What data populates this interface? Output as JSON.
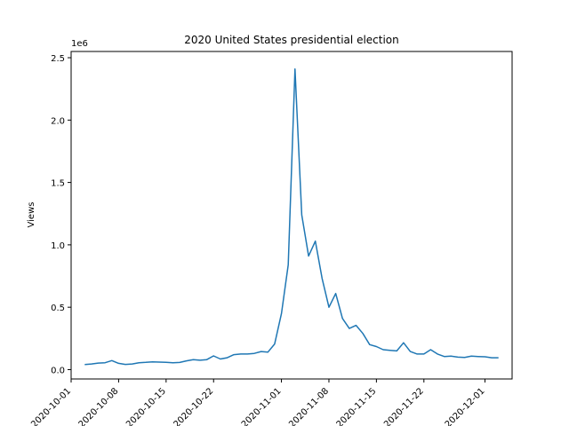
{
  "chart_data": {
    "type": "line",
    "title": "2020 United States presidential election",
    "xlabel": "",
    "ylabel": "Views",
    "offset_label": "1e6",
    "grid": false,
    "legend": "none",
    "line_color": "#1f77b4",
    "xlim": [
      "2020-10-01",
      "2020-12-05"
    ],
    "ylim": [
      -75000,
      2550000
    ],
    "y_ticks": [
      0,
      500000,
      1000000,
      1500000,
      2000000,
      2500000
    ],
    "y_tick_labels": [
      "0.0",
      "0.5",
      "1.0",
      "1.5",
      "2.0",
      "2.5"
    ],
    "x_ticks": [
      "2020-10-01",
      "2020-10-08",
      "2020-10-15",
      "2020-10-22",
      "2020-11-01",
      "2020-11-08",
      "2020-11-15",
      "2020-11-22",
      "2020-12-01"
    ],
    "x_tick_labels": [
      "2020-10-01",
      "2020-10-08",
      "2020-10-15",
      "2020-10-22",
      "2020-11-01",
      "2020-11-08",
      "2020-11-15",
      "2020-11-22",
      "2020-12-01"
    ],
    "series": [
      {
        "x": [
          "2020-10-03",
          "2020-10-04",
          "2020-10-05",
          "2020-10-06",
          "2020-10-07",
          "2020-10-08",
          "2020-10-09",
          "2020-10-10",
          "2020-10-11",
          "2020-10-12",
          "2020-10-13",
          "2020-10-14",
          "2020-10-15",
          "2020-10-16",
          "2020-10-17",
          "2020-10-18",
          "2020-10-19",
          "2020-10-20",
          "2020-10-21",
          "2020-10-22",
          "2020-10-23",
          "2020-10-24",
          "2020-10-25",
          "2020-10-26",
          "2020-10-27",
          "2020-10-28",
          "2020-10-29",
          "2020-10-30",
          "2020-10-31",
          "2020-11-01",
          "2020-11-02",
          "2020-11-03",
          "2020-11-04",
          "2020-11-05",
          "2020-11-06",
          "2020-11-07",
          "2020-11-08",
          "2020-11-09",
          "2020-11-10",
          "2020-11-11",
          "2020-11-12",
          "2020-11-13",
          "2020-11-14",
          "2020-11-15",
          "2020-11-16",
          "2020-11-17",
          "2020-11-18",
          "2020-11-19",
          "2020-11-20",
          "2020-11-21",
          "2020-11-22",
          "2020-11-23",
          "2020-11-24",
          "2020-11-25",
          "2020-11-26",
          "2020-11-27",
          "2020-11-28",
          "2020-11-29",
          "2020-11-30",
          "2020-12-01",
          "2020-12-02",
          "2020-12-03"
        ],
        "values": [
          40000,
          45000,
          52000,
          55000,
          72000,
          50000,
          42000,
          45000,
          55000,
          58000,
          62000,
          60000,
          58000,
          55000,
          57000,
          70000,
          80000,
          75000,
          80000,
          110000,
          85000,
          95000,
          120000,
          125000,
          125000,
          130000,
          145000,
          140000,
          205000,
          450000,
          840000,
          2410000,
          1240000,
          910000,
          1030000,
          730000,
          500000,
          610000,
          410000,
          330000,
          355000,
          290000,
          200000,
          185000,
          160000,
          155000,
          150000,
          215000,
          145000,
          125000,
          125000,
          160000,
          125000,
          105000,
          108000,
          100000,
          98000,
          108000,
          105000,
          103000,
          95000,
          95000
        ]
      }
    ]
  }
}
